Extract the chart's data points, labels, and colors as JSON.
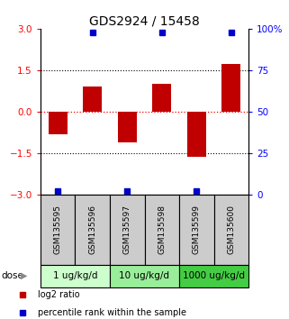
{
  "title": "GDS2924 / 15458",
  "samples": [
    "GSM135595",
    "GSM135596",
    "GSM135597",
    "GSM135598",
    "GSM135599",
    "GSM135600"
  ],
  "log2_ratio": [
    -0.82,
    0.92,
    -1.1,
    1.02,
    -1.62,
    1.72
  ],
  "percentile_rank": [
    2,
    98,
    2,
    98,
    2,
    98
  ],
  "ylim_left": [
    -3,
    3
  ],
  "ylim_right": [
    0,
    100
  ],
  "yticks_left": [
    -3,
    -1.5,
    0,
    1.5,
    3
  ],
  "yticks_right": [
    0,
    25,
    50,
    75,
    100
  ],
  "ytick_labels_right": [
    "0",
    "25",
    "50",
    "75",
    "100%"
  ],
  "bar_color": "#c00000",
  "dot_color": "#0000cc",
  "dose_groups": [
    {
      "label": "1 ug/kg/d",
      "samples": [
        0,
        1
      ],
      "color": "#ccffcc"
    },
    {
      "label": "10 ug/kg/d",
      "samples": [
        2,
        3
      ],
      "color": "#99ee99"
    },
    {
      "label": "1000 ug/kg/d",
      "samples": [
        4,
        5
      ],
      "color": "#44cc44"
    }
  ],
  "sample_box_color": "#cccccc",
  "legend_red_label": "log2 ratio",
  "legend_blue_label": "percentile rank within the sample",
  "dose_label": "dose"
}
